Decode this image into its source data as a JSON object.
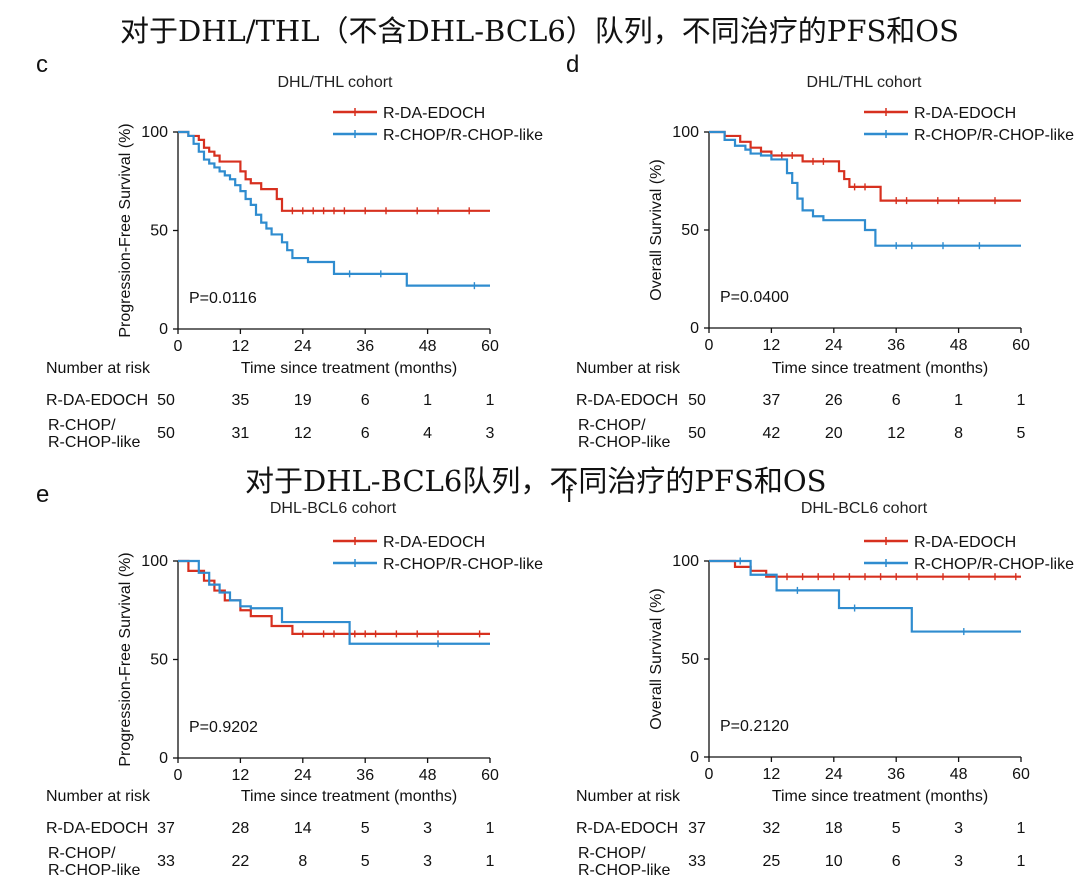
{
  "headings": {
    "top": "对于DHL/THL（不含DHL-BCL6）队列，不同治疗的PFS和OS",
    "middle": "对于DHL-BCL6队列，不同治疗的PFS和OS"
  },
  "colors": {
    "rda": "#d7301f",
    "rchop": "#2f8ccf"
  },
  "chart_data": [
    {
      "type": "line",
      "panel": "c",
      "title": "DHL/THL cohort",
      "ylabel": "Progression-Free Survival (%)",
      "xlabel": "Time since treatment (months)",
      "xlim": [
        0,
        60
      ],
      "ylim": [
        0,
        100
      ],
      "xticks": [
        "0",
        "12",
        "24",
        "36",
        "48",
        "60"
      ],
      "yticks": [
        "0",
        "50",
        "100"
      ],
      "pvalue": "P=0.0116",
      "series": [
        {
          "name": "R-DA-EDOCH",
          "color": "rda",
          "x": [
            0,
            2,
            4,
            5,
            6,
            7,
            8,
            11,
            12,
            13,
            14,
            16,
            19,
            20,
            60
          ],
          "y": [
            100,
            98,
            96,
            92,
            90,
            88,
            85,
            85,
            80,
            76,
            74,
            71,
            66,
            60,
            60
          ],
          "censor": [
            22,
            24,
            26,
            28,
            30,
            32,
            36,
            40,
            46,
            50,
            56
          ]
        },
        {
          "name": "R-CHOP/R-CHOP-like",
          "color": "rchop",
          "x": [
            0,
            2,
            3,
            4,
            5,
            6,
            7,
            8,
            9,
            10,
            11,
            12,
            13,
            14,
            15,
            16,
            17,
            18,
            20,
            21,
            22,
            25,
            30,
            44,
            60
          ],
          "y": [
            100,
            98,
            94,
            90,
            86,
            84,
            82,
            80,
            78,
            76,
            73,
            70,
            66,
            63,
            58,
            54,
            51,
            48,
            44,
            40,
            36,
            34,
            28,
            22,
            22
          ],
          "censor": [
            33,
            39,
            57
          ]
        }
      ],
      "risk_table": {
        "title": "Number at risk",
        "rows": [
          {
            "label": "R-DA-EDOCH",
            "n": "50",
            "counts": [
              "35",
              "19",
              "6",
              "1",
              "1"
            ]
          },
          {
            "label1": "R-CHOP/",
            "label2": "R-CHOP-like",
            "n": "50",
            "counts": [
              "31",
              "12",
              "6",
              "4",
              "3"
            ]
          }
        ]
      }
    },
    {
      "type": "line",
      "panel": "d",
      "title": "DHL/THL cohort",
      "ylabel": "Overall Survival (%)",
      "xlabel": "Time since treatment (months)",
      "xlim": [
        0,
        60
      ],
      "ylim": [
        0,
        100
      ],
      "xticks": [
        "0",
        "12",
        "24",
        "36",
        "48",
        "60"
      ],
      "yticks": [
        "0",
        "50",
        "100"
      ],
      "pvalue": "P=0.0400",
      "series": [
        {
          "name": "R-DA-EDOCH",
          "color": "rda",
          "x": [
            0,
            3,
            6,
            8,
            10,
            12,
            18,
            25,
            26,
            27,
            33,
            60
          ],
          "y": [
            100,
            98,
            95,
            92,
            90,
            88,
            85,
            80,
            76,
            72,
            65,
            65
          ],
          "censor": [
            14,
            16,
            20,
            22,
            28,
            30,
            36,
            38,
            44,
            48,
            55
          ]
        },
        {
          "name": "R-CHOP/R-CHOP-like",
          "color": "rchop",
          "x": [
            0,
            3,
            5,
            7,
            8,
            10,
            12,
            15,
            16,
            17,
            18,
            20,
            22,
            28,
            30,
            32,
            60
          ],
          "y": [
            100,
            96,
            93,
            91,
            89,
            88,
            86,
            79,
            74,
            66,
            60,
            57,
            55,
            55,
            50,
            42,
            42
          ],
          "censor": [
            36,
            39,
            45,
            52
          ]
        }
      ],
      "risk_table": {
        "title": "Number at risk",
        "rows": [
          {
            "label": "R-DA-EDOCH",
            "n": "50",
            "counts": [
              "37",
              "26",
              "6",
              "1",
              "1"
            ]
          },
          {
            "label1": "R-CHOP/",
            "label2": "R-CHOP-like",
            "n": "50",
            "counts": [
              "42",
              "20",
              "12",
              "8",
              "5"
            ]
          }
        ]
      }
    },
    {
      "type": "line",
      "panel": "e",
      "title": "DHL-BCL6 cohort",
      "ylabel": "Progression-Free Survival (%)",
      "xlabel": "Time since treatment (months)",
      "xlim": [
        0,
        60
      ],
      "ylim": [
        0,
        100
      ],
      "xticks": [
        "0",
        "12",
        "24",
        "36",
        "48",
        "60"
      ],
      "yticks": [
        "0",
        "50",
        "100"
      ],
      "pvalue": "P=0.9202",
      "series": [
        {
          "name": "R-DA-EDOCH",
          "color": "rda",
          "x": [
            0,
            2,
            5,
            7,
            9,
            12,
            14,
            18,
            22,
            60
          ],
          "y": [
            100,
            95,
            90,
            85,
            80,
            75,
            72,
            67,
            63,
            63
          ],
          "censor": [
            24,
            28,
            30,
            34,
            36,
            38,
            42,
            46,
            50,
            58
          ]
        },
        {
          "name": "R-CHOP/R-CHOP-like",
          "color": "rchop",
          "x": [
            0,
            4,
            6,
            8,
            10,
            12,
            14,
            20,
            33,
            60
          ],
          "y": [
            100,
            94,
            88,
            84,
            80,
            77,
            76,
            69,
            58,
            58
          ],
          "censor": [
            50
          ]
        }
      ],
      "risk_table": {
        "title": "Number at risk",
        "rows": [
          {
            "label": "R-DA-EDOCH",
            "n": "37",
            "counts": [
              "28",
              "14",
              "5",
              "3",
              "1"
            ]
          },
          {
            "label1": "R-CHOP/",
            "label2": "R-CHOP-like",
            "n": "33",
            "counts": [
              "22",
              "8",
              "5",
              "3",
              "1"
            ]
          }
        ]
      }
    },
    {
      "type": "line",
      "panel": "f",
      "title": "DHL-BCL6 cohort",
      "ylabel": "Overall Survival (%)",
      "xlabel": "Time since treatment (months)",
      "xlim": [
        0,
        60
      ],
      "ylim": [
        0,
        100
      ],
      "xticks": [
        "0",
        "12",
        "24",
        "36",
        "48",
        "60"
      ],
      "yticks": [
        "0",
        "50",
        "100"
      ],
      "pvalue": "P=0.2120",
      "series": [
        {
          "name": "R-DA-EDOCH",
          "color": "rda",
          "x": [
            0,
            5,
            8,
            11,
            60
          ],
          "y": [
            100,
            97,
            95,
            92,
            92
          ],
          "censor": [
            15,
            18,
            21,
            24,
            27,
            30,
            33,
            36,
            40,
            45,
            50,
            55,
            59
          ]
        },
        {
          "name": "R-CHOP/R-CHOP-like",
          "color": "rchop",
          "x": [
            0,
            8,
            13,
            25,
            39,
            60
          ],
          "y": [
            100,
            93,
            85,
            76,
            64,
            64
          ],
          "censor": [
            6,
            17,
            28,
            49
          ]
        }
      ],
      "risk_table": {
        "title": "Number at risk",
        "rows": [
          {
            "label": "R-DA-EDOCH",
            "n": "37",
            "counts": [
              "32",
              "18",
              "5",
              "3",
              "1"
            ]
          },
          {
            "label1": "R-CHOP/",
            "label2": "R-CHOP-like",
            "n": "33",
            "counts": [
              "25",
              "10",
              "6",
              "3",
              "1"
            ]
          }
        ]
      }
    }
  ]
}
